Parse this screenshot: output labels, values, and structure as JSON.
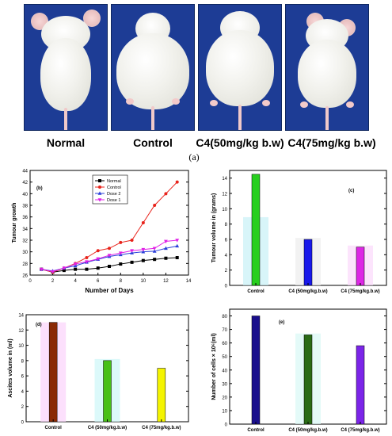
{
  "photos": {
    "labels": [
      "Normal",
      "Control",
      "C4(50mg/kg b.w)",
      "C4(75mg/kg b.w)"
    ],
    "panel_label": "(a)"
  },
  "colors": {
    "photo_bg": "#1d3c95",
    "normal": "#000000",
    "control": "#e8231b",
    "dose2": "#2a3fd9",
    "dose1": "#e020e6",
    "green": "#27cf1e",
    "blue": "#1919ea",
    "magenta": "#dd26e5",
    "brown": "#8a2a05",
    "lime": "#48c018",
    "yellow": "#f4f400",
    "navy": "#1a0f8c",
    "darkgreen": "#2a6b16",
    "violet": "#7b25e8"
  },
  "chart_data": [
    {
      "id": "b",
      "type": "line",
      "panel_label": "(b)",
      "xlabel": "Number of Days",
      "ylabel": "Tumour growth",
      "xlim": [
        0,
        14
      ],
      "ylim": [
        26,
        44
      ],
      "xticks": [
        0,
        2,
        4,
        6,
        8,
        10,
        12,
        14
      ],
      "yticks": [
        26,
        28,
        30,
        32,
        34,
        36,
        38,
        40,
        42,
        44
      ],
      "legend_position": "top-right",
      "x": [
        1,
        2,
        3,
        4,
        5,
        6,
        7,
        8,
        9,
        10,
        11,
        12,
        13
      ],
      "series": [
        {
          "name": "Normal",
          "marker": "square",
          "values": [
            27,
            26.5,
            26.8,
            27,
            27,
            27.2,
            27.5,
            27.9,
            28.2,
            28.5,
            28.7,
            28.9,
            29
          ]
        },
        {
          "name": "Control",
          "marker": "circle",
          "values": [
            27,
            26.5,
            27.2,
            28,
            29,
            30.2,
            30.6,
            31.6,
            32,
            35,
            38,
            40,
            42
          ]
        },
        {
          "name": "Dose 2",
          "marker": "triangle-up",
          "values": [
            27,
            26.7,
            27.2,
            27.6,
            28.2,
            28.7,
            29.2,
            29.5,
            29.8,
            30,
            30.1,
            30.6,
            31
          ]
        },
        {
          "name": "Dose 1",
          "marker": "triangle-down",
          "values": [
            27,
            26.6,
            27.2,
            27.9,
            28.3,
            28.8,
            29.4,
            29.8,
            30.2,
            30.4,
            30.6,
            31.8,
            32
          ]
        }
      ]
    },
    {
      "id": "c",
      "type": "bar",
      "panel_label": "(c)",
      "ylabel": "Tumour volume in (grams)",
      "ylim": [
        0,
        15
      ],
      "yticks": [
        0,
        2,
        4,
        6,
        8,
        10,
        12,
        14
      ],
      "categories": [
        "Control",
        "C4 (50mg/kg.b.w)",
        "C4 (75mg/kg.b.w)"
      ],
      "values": [
        14.5,
        6,
        5
      ],
      "shadow_values": [
        8.9,
        6.2,
        5.2
      ]
    },
    {
      "id": "d",
      "type": "bar",
      "panel_label": "(d)",
      "ylabel": "Ascites volume in (ml)",
      "ylim": [
        0,
        14
      ],
      "yticks": [
        0,
        2,
        4,
        6,
        8,
        10,
        12,
        14
      ],
      "categories": [
        "Control",
        "C4 (50mg/kg.b.w)",
        "C4 (75mg/kg.b.w)"
      ],
      "values": [
        13,
        8,
        7
      ],
      "shadow_values": [
        13,
        8.2,
        0
      ]
    },
    {
      "id": "e",
      "type": "bar",
      "panel_label": "(e)",
      "ylabel": "Number of cells × 10⁶(ml)",
      "ylim": [
        0,
        85
      ],
      "yticks": [
        0,
        10,
        20,
        30,
        40,
        50,
        60,
        70,
        80
      ],
      "categories": [
        "Control",
        "C4 (50mg/kg.b.w)",
        "C4 (75mg/kg.b.w)"
      ],
      "values": [
        80,
        66,
        58
      ],
      "shadow_values": [
        0,
        67,
        0
      ]
    }
  ]
}
